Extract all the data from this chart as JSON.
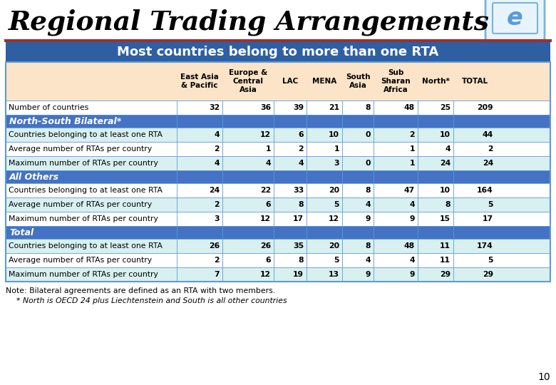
{
  "title": "Regional Trading Arrangements",
  "subtitle": "Most countries belong to more than one RTA",
  "note1": "Note: Bilateral agreements are defined as an RTA with two members.",
  "note2": "     * North is OECD 24 plus Liechtenstein and South is all other countries",
  "page_num": "10",
  "col_headers": [
    "East Asia\n& Pacific",
    "Europe &\nCentral\nAsia",
    "LAC",
    "MENA",
    "South\nAsia",
    "Sub\nSharan\nAfrica",
    "North*",
    "TOTAL"
  ],
  "rows": [
    {
      "label": "Number of countries",
      "values": [
        "32",
        "36",
        "39",
        "21",
        "8",
        "48",
        "25",
        "209"
      ],
      "type": "normal",
      "bg": "#ffffff",
      "alt": false
    },
    {
      "label": "North-South Bilateral*",
      "values": [
        "",
        "",
        "",
        "",
        "",
        "",
        "",
        ""
      ],
      "type": "section_header",
      "bg": "#4472c4",
      "alt": false
    },
    {
      "label": "Countries belonging to at least one RTA",
      "values": [
        "4",
        "12",
        "6",
        "10",
        "0",
        "2",
        "10",
        "44"
      ],
      "type": "normal",
      "bg": "#d9f0f0",
      "alt": true
    },
    {
      "label": "Average number of RTAs per country",
      "values": [
        "2",
        "1",
        "2",
        "1",
        "",
        "1",
        "4",
        "2"
      ],
      "type": "normal",
      "bg": "#ffffff",
      "alt": false
    },
    {
      "label": "Maximum number of RTAs per country",
      "values": [
        "4",
        "4",
        "4",
        "3",
        "0",
        "1",
        "24",
        "24"
      ],
      "type": "normal",
      "bg": "#d9f0f0",
      "alt": true
    },
    {
      "label": "All Others",
      "values": [
        "",
        "",
        "",
        "",
        "",
        "",
        "",
        ""
      ],
      "type": "section_header",
      "bg": "#4472c4",
      "alt": false
    },
    {
      "label": "Countries belonging to at least one RTA",
      "values": [
        "24",
        "22",
        "33",
        "20",
        "8",
        "47",
        "10",
        "164"
      ],
      "type": "normal",
      "bg": "#ffffff",
      "alt": false
    },
    {
      "label": "Average number of RTAs per country",
      "values": [
        "2",
        "6",
        "8",
        "5",
        "4",
        "4",
        "8",
        "5"
      ],
      "type": "normal",
      "bg": "#d9f0f0",
      "alt": true
    },
    {
      "label": "Maximum number of RTAs per country",
      "values": [
        "3",
        "12",
        "17",
        "12",
        "9",
        "9",
        "15",
        "17"
      ],
      "type": "normal",
      "bg": "#ffffff",
      "alt": false
    },
    {
      "label": "Total",
      "values": [
        "",
        "",
        "",
        "",
        "",
        "",
        "",
        ""
      ],
      "type": "section_header",
      "bg": "#4472c4",
      "alt": false
    },
    {
      "label": "Countries belonging to at least one RTA",
      "values": [
        "26",
        "26",
        "35",
        "20",
        "8",
        "48",
        "11",
        "174"
      ],
      "type": "normal",
      "bg": "#d9f0f0",
      "alt": true
    },
    {
      "label": "Average number of RTAs per country",
      "values": [
        "2",
        "6",
        "8",
        "5",
        "4",
        "4",
        "11",
        "5"
      ],
      "type": "normal",
      "bg": "#ffffff",
      "alt": false
    },
    {
      "label": "Maximum number of RTAs per country",
      "values": [
        "7",
        "12",
        "19",
        "13",
        "9",
        "9",
        "29",
        "29"
      ],
      "type": "normal",
      "bg": "#d9f0f0",
      "alt": true
    }
  ],
  "header_bg": "#fce4c8",
  "section_text_color": "#ffffff",
  "normal_text_color": "#000000",
  "border_color": "#5b9bd5",
  "title_color": "#000000",
  "subtitle_bg": "#2e5fa3",
  "subtitle_text_color": "#ffffff"
}
